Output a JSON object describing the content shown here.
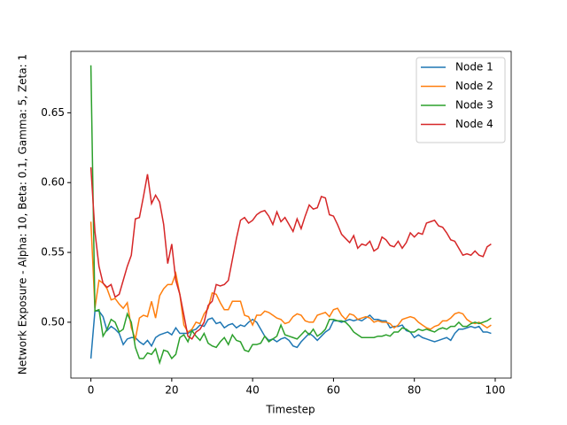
{
  "chart_data": {
    "type": "line",
    "xlabel": "Timestep",
    "ylabel": "Network Exposure - Alpha: 10, Beta: 0.1, Gamma: 5, Zeta: 1",
    "x": [
      0,
      1,
      2,
      3,
      4,
      5,
      6,
      7,
      8,
      9,
      10,
      11,
      12,
      13,
      14,
      15,
      16,
      17,
      18,
      19,
      20,
      21,
      22,
      23,
      24,
      25,
      26,
      27,
      28,
      29,
      30,
      31,
      32,
      33,
      34,
      35,
      36,
      37,
      38,
      39,
      40,
      41,
      42,
      43,
      44,
      45,
      46,
      47,
      48,
      49,
      50,
      51,
      52,
      53,
      54,
      55,
      56,
      57,
      58,
      59,
      60,
      61,
      62,
      63,
      64,
      65,
      66,
      67,
      68,
      69,
      70,
      71,
      72,
      73,
      74,
      75,
      76,
      77,
      78,
      79,
      80,
      81,
      82,
      83,
      84,
      85,
      86,
      87,
      88,
      89,
      90,
      91,
      92,
      93,
      94,
      95,
      96,
      97,
      98,
      99
    ],
    "series": [
      {
        "name": "Node 1",
        "color": "#1f77b4",
        "values": [
          0.474,
          0.508,
          0.508,
          0.504,
          0.494,
          0.497,
          0.495,
          0.492,
          0.484,
          0.488,
          0.489,
          0.489,
          0.486,
          0.484,
          0.487,
          0.483,
          0.489,
          0.491,
          0.492,
          0.493,
          0.491,
          0.496,
          0.492,
          0.492,
          0.492,
          0.494,
          0.495,
          0.498,
          0.497,
          0.502,
          0.503,
          0.499,
          0.5,
          0.496,
          0.498,
          0.499,
          0.496,
          0.498,
          0.497,
          0.5,
          0.502,
          0.5,
          0.495,
          0.49,
          0.487,
          0.488,
          0.486,
          0.488,
          0.489,
          0.487,
          0.483,
          0.482,
          0.486,
          0.489,
          0.492,
          0.49,
          0.487,
          0.49,
          0.493,
          0.495,
          0.501,
          0.501,
          0.5,
          0.501,
          0.502,
          0.501,
          0.502,
          0.501,
          0.503,
          0.505,
          0.502,
          0.502,
          0.501,
          0.501,
          0.496,
          0.497,
          0.497,
          0.498,
          0.494,
          0.493,
          0.489,
          0.491,
          0.489,
          0.488,
          0.487,
          0.486,
          0.487,
          0.488,
          0.489,
          0.487,
          0.492,
          0.495,
          0.495,
          0.496,
          0.497,
          0.496,
          0.497,
          0.493,
          0.493,
          0.492
        ]
      },
      {
        "name": "Node 2",
        "color": "#ff7f0e",
        "values": [
          0.572,
          0.51,
          0.53,
          0.528,
          0.524,
          0.516,
          0.517,
          0.513,
          0.51,
          0.514,
          0.496,
          0.488,
          0.503,
          0.505,
          0.504,
          0.515,
          0.503,
          0.519,
          0.524,
          0.527,
          0.527,
          0.535,
          0.52,
          0.498,
          0.493,
          0.495,
          0.5,
          0.499,
          0.506,
          0.51,
          0.521,
          0.52,
          0.514,
          0.509,
          0.509,
          0.515,
          0.515,
          0.515,
          0.505,
          0.504,
          0.498,
          0.505,
          0.505,
          0.508,
          0.507,
          0.505,
          0.503,
          0.502,
          0.499,
          0.5,
          0.504,
          0.506,
          0.505,
          0.501,
          0.5,
          0.5,
          0.505,
          0.506,
          0.507,
          0.504,
          0.509,
          0.51,
          0.505,
          0.502,
          0.506,
          0.505,
          0.502,
          0.503,
          0.504,
          0.503,
          0.5,
          0.501,
          0.5,
          0.5,
          0.499,
          0.496,
          0.498,
          0.502,
          0.503,
          0.504,
          0.503,
          0.5,
          0.498,
          0.496,
          0.495,
          0.497,
          0.498,
          0.501,
          0.501,
          0.503,
          0.506,
          0.507,
          0.506,
          0.502,
          0.5,
          0.499,
          0.5,
          0.498,
          0.496,
          0.498
        ]
      },
      {
        "name": "Node 3",
        "color": "#2ca02c",
        "values": [
          0.684,
          0.508,
          0.509,
          0.49,
          0.495,
          0.502,
          0.5,
          0.493,
          0.495,
          0.506,
          0.5,
          0.482,
          0.474,
          0.474,
          0.478,
          0.477,
          0.481,
          0.471,
          0.48,
          0.479,
          0.474,
          0.477,
          0.489,
          0.491,
          0.486,
          0.494,
          0.49,
          0.487,
          0.492,
          0.485,
          0.483,
          0.482,
          0.486,
          0.489,
          0.484,
          0.491,
          0.487,
          0.486,
          0.48,
          0.479,
          0.484,
          0.484,
          0.485,
          0.49,
          0.486,
          0.488,
          0.49,
          0.498,
          0.491,
          0.49,
          0.489,
          0.488,
          0.491,
          0.494,
          0.491,
          0.495,
          0.49,
          0.492,
          0.495,
          0.502,
          0.502,
          0.501,
          0.501,
          0.5,
          0.497,
          0.493,
          0.491,
          0.489,
          0.489,
          0.489,
          0.489,
          0.49,
          0.49,
          0.491,
          0.49,
          0.493,
          0.493,
          0.496,
          0.495,
          0.493,
          0.493,
          0.495,
          0.494,
          0.495,
          0.494,
          0.493,
          0.495,
          0.496,
          0.495,
          0.497,
          0.497,
          0.5,
          0.497,
          0.497,
          0.499,
          0.5,
          0.499,
          0.5,
          0.501,
          0.503
        ]
      },
      {
        "name": "Node 4",
        "color": "#d62728",
        "values": [
          0.611,
          0.565,
          0.54,
          0.528,
          0.525,
          0.527,
          0.518,
          0.52,
          0.53,
          0.54,
          0.548,
          0.574,
          0.575,
          0.59,
          0.606,
          0.585,
          0.591,
          0.586,
          0.57,
          0.542,
          0.556,
          0.53,
          0.52,
          0.505,
          0.49,
          0.488,
          0.493,
          0.495,
          0.5,
          0.512,
          0.515,
          0.527,
          0.526,
          0.527,
          0.53,
          0.545,
          0.56,
          0.573,
          0.575,
          0.571,
          0.573,
          0.577,
          0.579,
          0.58,
          0.576,
          0.57,
          0.579,
          0.572,
          0.575,
          0.57,
          0.565,
          0.574,
          0.567,
          0.576,
          0.584,
          0.581,
          0.582,
          0.59,
          0.589,
          0.577,
          0.576,
          0.57,
          0.563,
          0.56,
          0.557,
          0.562,
          0.553,
          0.556,
          0.555,
          0.558,
          0.551,
          0.553,
          0.561,
          0.559,
          0.555,
          0.554,
          0.558,
          0.553,
          0.557,
          0.564,
          0.561,
          0.564,
          0.563,
          0.571,
          0.572,
          0.573,
          0.569,
          0.568,
          0.564,
          0.559,
          0.558,
          0.553,
          0.548,
          0.549,
          0.548,
          0.551,
          0.548,
          0.547,
          0.554,
          0.556
        ]
      }
    ],
    "xlim": [
      -4.95,
      103.95
    ],
    "ylim": [
      0.46,
      0.694
    ],
    "xticks": [
      0,
      20,
      40,
      60,
      80,
      100
    ],
    "yticks": [
      {
        "value": 0.5,
        "label": "0.50"
      },
      {
        "value": 0.55,
        "label": "0.55"
      },
      {
        "value": 0.6,
        "label": "0.60"
      },
      {
        "value": 0.65,
        "label": "0.65"
      }
    ],
    "legend": "upper right"
  }
}
